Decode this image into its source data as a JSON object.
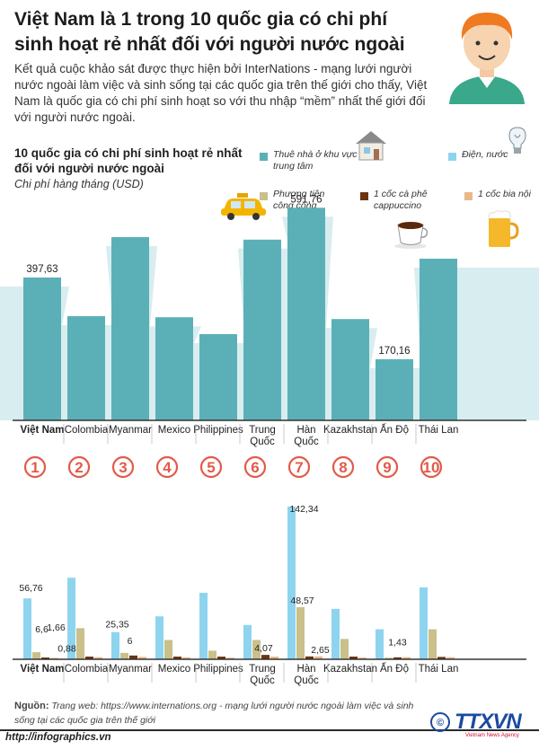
{
  "header": {
    "title": "Việt Nam là 1 trong 10 quốc gia có chi phí sinh hoạt rẻ nhất đối với người nước ngoài",
    "intro": "Kết quả cuộc khảo sát  được thực hiện bởi InterNations -  mạng lưới người nước ngoài làm việc và sinh sống tại các quốc gia trên thế giới cho thấy, Việt Nam là quốc gia có chi phí sinh hoạt so với thu nhập “mềm” nhất thế giới đối với người nước ngoài."
  },
  "chart_title": "10 quốc gia có chi phí sinh hoạt rẻ nhất đối với người nước ngoài",
  "chart_subtitle": "Chi phí hàng tháng (USD)",
  "legend": [
    {
      "label": "Thuê nhà ở khu vực trung tâm",
      "color": "#5bb0b8",
      "icon": "house-icon"
    },
    {
      "label": "Điện, nước",
      "color": "#8fd4ef",
      "icon": "lightbulb-icon"
    },
    {
      "label": "Phương tiện công cộng",
      "color": "#c9c08a",
      "icon": "taxi-icon"
    },
    {
      "label": "1 cốc cà phê cappuccino",
      "color": "#6b3510",
      "icon": "coffee-cup-icon"
    },
    {
      "label": "1 cốc bia nội",
      "color": "#e8b88a",
      "icon": "beer-mug-icon"
    }
  ],
  "colors": {
    "rent": "#5bb0b8",
    "utilities": "#8fd4ef",
    "transport": "#c9c08a",
    "coffee": "#6b3510",
    "beer": "#e8b88a",
    "rank_circle": "#e25a4a",
    "avatar_shirt": "#3aa88a",
    "avatar_hair": "#f07a20"
  },
  "chart_data": [
    {
      "type": "bar",
      "title": "10 quốc gia có chi phí sinh hoạt rẻ nhất đối với người nước ngoài",
      "ylabel": "Chi phí hàng tháng (USD)",
      "categories": [
        "Việt Nam",
        "Colombia",
        "Myanmar",
        "Mexico",
        "Philippines",
        "Trung Quốc",
        "Hàn Quốc",
        "Kazakhstan",
        "Ấn Độ",
        "Thái Lan"
      ],
      "series": [
        {
          "name": "Thuê nhà ở khu vực trung tâm",
          "values": [
            397.63,
            290,
            510,
            287,
            240,
            503,
            591.76,
            282,
            170.16,
            450
          ]
        }
      ],
      "data_labels": [
        "397,63",
        "",
        "",
        "",
        "",
        "",
        "591,76",
        "",
        "170,16",
        ""
      ],
      "ylim": [
        0,
        700
      ],
      "grid": false,
      "legend": "top-right"
    },
    {
      "type": "bar",
      "categories": [
        "Việt Nam",
        "Colombia",
        "Myanmar",
        "Mexico",
        "Philippines",
        "Trung Quốc",
        "Hàn Quốc",
        "Kazakhstan",
        "Ấn Độ",
        "Thái Lan"
      ],
      "ranks": [
        "1",
        "2",
        "3",
        "4",
        "5",
        "6",
        "7",
        "8",
        "9",
        "10"
      ],
      "series": [
        {
          "name": "Điện, nước",
          "values": [
            56.76,
            76,
            25.35,
            40,
            62,
            32,
            142.34,
            47,
            28,
            67
          ]
        },
        {
          "name": "Phương tiện công cộng",
          "values": [
            6.6,
            29,
            6,
            18,
            8,
            18,
            48.57,
            19,
            1.43,
            28
          ]
        },
        {
          "name": "1 cốc cà phê cappuccino",
          "values": [
            1.66,
            2.5,
            3.5,
            2.5,
            2.5,
            4.07,
            2.65,
            2.5,
            1.8,
            2.2
          ]
        },
        {
          "name": "1 cốc bia nội",
          "values": [
            0.88,
            2,
            2.2,
            1.8,
            1.5,
            2.5,
            2.7,
            1.6,
            2,
            2
          ]
        }
      ],
      "data_labels": [
        {
          "category": "Việt Nam",
          "series": "Điện, nước",
          "text": "56,76"
        },
        {
          "category": "Việt Nam",
          "series": "Phương tiện công cộng",
          "text": "6,6"
        },
        {
          "category": "Việt Nam",
          "series": "1 cốc cà phê cappuccino",
          "text": "1,66"
        },
        {
          "category": "Việt Nam",
          "series": "1 cốc bia nội",
          "text": "0,88"
        },
        {
          "category": "Myanmar",
          "series": "Điện, nước",
          "text": "25,35"
        },
        {
          "category": "Myanmar",
          "series": "Phương tiện công cộng",
          "text": "6"
        },
        {
          "category": "Trung Quốc",
          "series": "1 cốc cà phê cappuccino",
          "text": "4,07"
        },
        {
          "category": "Hàn Quốc",
          "series": "Điện, nước",
          "text": "142,34"
        },
        {
          "category": "Hàn Quốc",
          "series": "Phương tiện công cộng",
          "text": "48,57"
        },
        {
          "category": "Hàn Quốc",
          "series": "1 cốc cà phê cappuccino",
          "text": "2,65"
        },
        {
          "category": "Ấn Độ",
          "series": "Phương tiện công cộng",
          "text": "1,43"
        }
      ],
      "ylim": [
        0,
        160
      ],
      "grid": false
    }
  ],
  "footer": {
    "source_label": "Nguồn:",
    "source_text": "Trang web: https://www.internations.org - mạng lưới người nước ngoài làm việc và sinh sống tại các quốc gia trên thế giới",
    "url": "http://infographics.vn",
    "logo_text": "TTXVN",
    "logo_sub": "Vietnam News Agency"
  }
}
